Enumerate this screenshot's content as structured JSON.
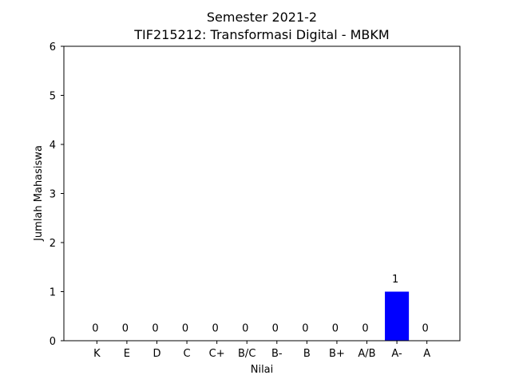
{
  "chart_data": {
    "type": "bar",
    "title_line1": "Semester 2021-2",
    "title_line2": "TIF215212: Transformasi Digital - MBKM",
    "xlabel": "Nilai",
    "ylabel": "Jumlah Mahasiswa",
    "categories": [
      "K",
      "E",
      "D",
      "C",
      "C+",
      "B/C",
      "B-",
      "B",
      "B+",
      "A/B",
      "A-",
      "A"
    ],
    "values": [
      0,
      0,
      0,
      0,
      0,
      0,
      0,
      0,
      0,
      0,
      1,
      0
    ],
    "ylim": [
      0,
      6
    ],
    "yticks": [
      0,
      1,
      2,
      3,
      4,
      5,
      6
    ],
    "bar_color": "#0000ff",
    "grid": false,
    "legend": "none"
  }
}
